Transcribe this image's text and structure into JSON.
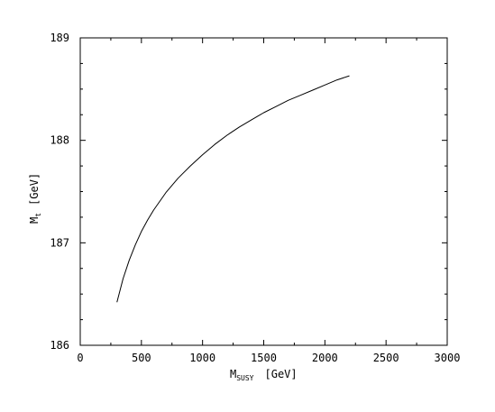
{
  "chart_data": {
    "type": "line",
    "title": "",
    "xlabel": {
      "main": "M",
      "sub": "SUSY",
      "unit": "[GeV]"
    },
    "ylabel": {
      "main": "M",
      "sub": "t",
      "unit": "[GeV]"
    },
    "xlim": [
      0,
      3000
    ],
    "ylim": [
      186,
      189
    ],
    "xticks": [
      0,
      500,
      1000,
      1500,
      2000,
      2500,
      3000
    ],
    "yticks": [
      186,
      187,
      188,
      189
    ],
    "x_minor_step": 250,
    "y_minor_step": 0.25,
    "grid": false,
    "series": [
      {
        "x": [
          300,
          350,
          400,
          450,
          500,
          550,
          600,
          700,
          800,
          900,
          1000,
          1100,
          1200,
          1300,
          1400,
          1500,
          1600,
          1700,
          1800,
          1900,
          2000,
          2100,
          2200
        ],
        "y": [
          186.42,
          186.65,
          186.83,
          186.98,
          187.11,
          187.22,
          187.32,
          187.49,
          187.63,
          187.75,
          187.86,
          187.96,
          188.05,
          188.13,
          188.2,
          188.27,
          188.33,
          188.39,
          188.44,
          188.49,
          188.54,
          188.59,
          188.63
        ],
        "color": "#000000"
      }
    ]
  }
}
